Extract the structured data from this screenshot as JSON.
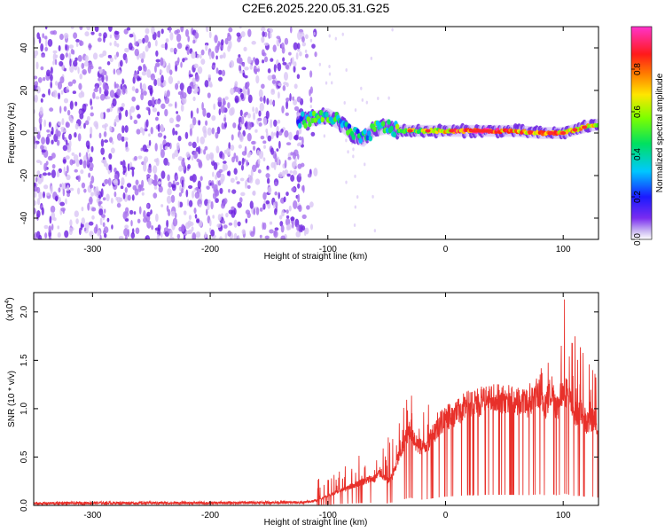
{
  "title": "C2E6.2025.220.05.31.G25",
  "colors": {
    "snr_line": "#e8302a",
    "scatter_light": "#d9c6f5",
    "scatter_mid": "#a872ee",
    "scatter_dark": "#6b1fe0",
    "background": "#ffffff"
  },
  "chart_data": [
    {
      "type": "heatmap",
      "title": "C2E6.2025.220.05.31.G25",
      "xlabel": "Height of straight line (km)",
      "ylabel": "Frequency (Hz)",
      "xlim": [
        -350,
        130
      ],
      "ylim": [
        -50,
        50
      ],
      "x_ticks": [
        -300,
        -200,
        -100,
        0,
        100
      ],
      "x_tick_labels": [
        "-300",
        "-200",
        "-100",
        "0",
        "100"
      ],
      "y_ticks": [
        -40,
        -20,
        0,
        20,
        40
      ],
      "y_tick_labels": [
        "-40",
        "-20",
        "0",
        "20",
        "40"
      ],
      "grid": false,
      "colorbar": {
        "label": "Normalized spectral amplitude",
        "range": [
          0,
          1
        ],
        "ticks": [
          0,
          0.2,
          0.4,
          0.6,
          0.8
        ],
        "tick_labels": [
          "0.0",
          "0.2",
          "0.4",
          "0.6",
          "0.8"
        ],
        "colormap": "rainbow (violet-blue-cyan-green-yellow-red-magenta)"
      },
      "features": {
        "noise_region_x": [
          -350,
          -120
        ],
        "noise_amplitude_range": [
          0.0,
          0.2
        ],
        "signal_ridge": [
          {
            "x": -125,
            "f": 6,
            "amp": 0.35
          },
          {
            "x": -110,
            "f": 7,
            "amp": 0.4
          },
          {
            "x": -100,
            "f": 8,
            "amp": 0.45
          },
          {
            "x": -90,
            "f": 5,
            "amp": 0.4
          },
          {
            "x": -80,
            "f": 0,
            "amp": 0.35
          },
          {
            "x": -70,
            "f": -3,
            "amp": 0.35
          },
          {
            "x": -60,
            "f": 2,
            "amp": 0.45
          },
          {
            "x": -50,
            "f": 3,
            "amp": 0.4
          },
          {
            "x": -40,
            "f": 1,
            "amp": 0.5
          },
          {
            "x": -20,
            "f": 1,
            "amp": 0.6
          },
          {
            "x": 0,
            "f": 1,
            "amp": 0.7
          },
          {
            "x": 30,
            "f": 1,
            "amp": 0.95
          },
          {
            "x": 60,
            "f": 1,
            "amp": 0.7
          },
          {
            "x": 80,
            "f": 0,
            "amp": 0.75
          },
          {
            "x": 100,
            "f": 0,
            "amp": 0.7
          },
          {
            "x": 120,
            "f": 3,
            "amp": 0.6
          },
          {
            "x": 130,
            "f": 4,
            "amp": 0.6
          }
        ]
      }
    },
    {
      "type": "line",
      "title": "",
      "xlabel": "Height of straight line (km)",
      "ylabel": "SNR (10 * v/v)",
      "y_multiplier": "(x10^4)",
      "y_multiplier_base": "(x10",
      "y_multiplier_exp": "4",
      "y_multiplier_close": ")",
      "xlim": [
        -350,
        130
      ],
      "ylim": [
        0,
        22000
      ],
      "x_ticks": [
        -300,
        -200,
        -100,
        0,
        100
      ],
      "x_tick_labels": [
        "-300",
        "-200",
        "-100",
        "0",
        "100"
      ],
      "y_ticks": [
        0,
        5000,
        10000,
        15000,
        20000
      ],
      "y_tick_labels": [
        "0.0",
        "0.5",
        "1.0",
        "1.5",
        "2.0"
      ],
      "grid": false,
      "series": [
        {
          "x": [
            -350,
            -300,
            -250,
            -200,
            -150,
            -120,
            -110,
            -100,
            -90,
            -80,
            -70,
            -60,
            -55,
            -50,
            -45,
            -40,
            -35,
            -30,
            -25,
            -20,
            -15,
            -10,
            -5,
            0,
            10,
            20,
            30,
            40,
            50,
            60,
            70,
            75,
            80,
            85,
            90,
            95,
            100,
            105,
            110,
            115,
            120,
            125,
            130
          ],
          "values": [
            200,
            250,
            250,
            250,
            300,
            300,
            500,
            1000,
            1500,
            2000,
            2500,
            2800,
            3500,
            2500,
            3000,
            5000,
            6500,
            8000,
            6500,
            6000,
            6500,
            7500,
            8500,
            9000,
            9800,
            10500,
            10800,
            11000,
            11000,
            10800,
            10500,
            11000,
            11500,
            10500,
            12000,
            10000,
            12500,
            11000,
            9500,
            10000,
            8500,
            9000,
            8000
          ],
          "noise_band": [
            {
              "x": -100,
              "max": 2800
            },
            {
              "x": -80,
              "max": 5000
            },
            {
              "x": -60,
              "max": 6500
            },
            {
              "x": -50,
              "max": 7500
            },
            {
              "x": -40,
              "max": 9000
            },
            {
              "x": -30,
              "max": 12800
            },
            {
              "x": -20,
              "max": 11500
            },
            {
              "x": 0,
              "max": 10500
            },
            {
              "x": 60,
              "max": 11500
            },
            {
              "x": 80,
              "max": 14000
            },
            {
              "x": 100,
              "max": 22000
            },
            {
              "x": 110,
              "max": 17500
            },
            {
              "x": 120,
              "max": 15000
            },
            {
              "x": 130,
              "max": 13000
            }
          ]
        }
      ]
    }
  ]
}
